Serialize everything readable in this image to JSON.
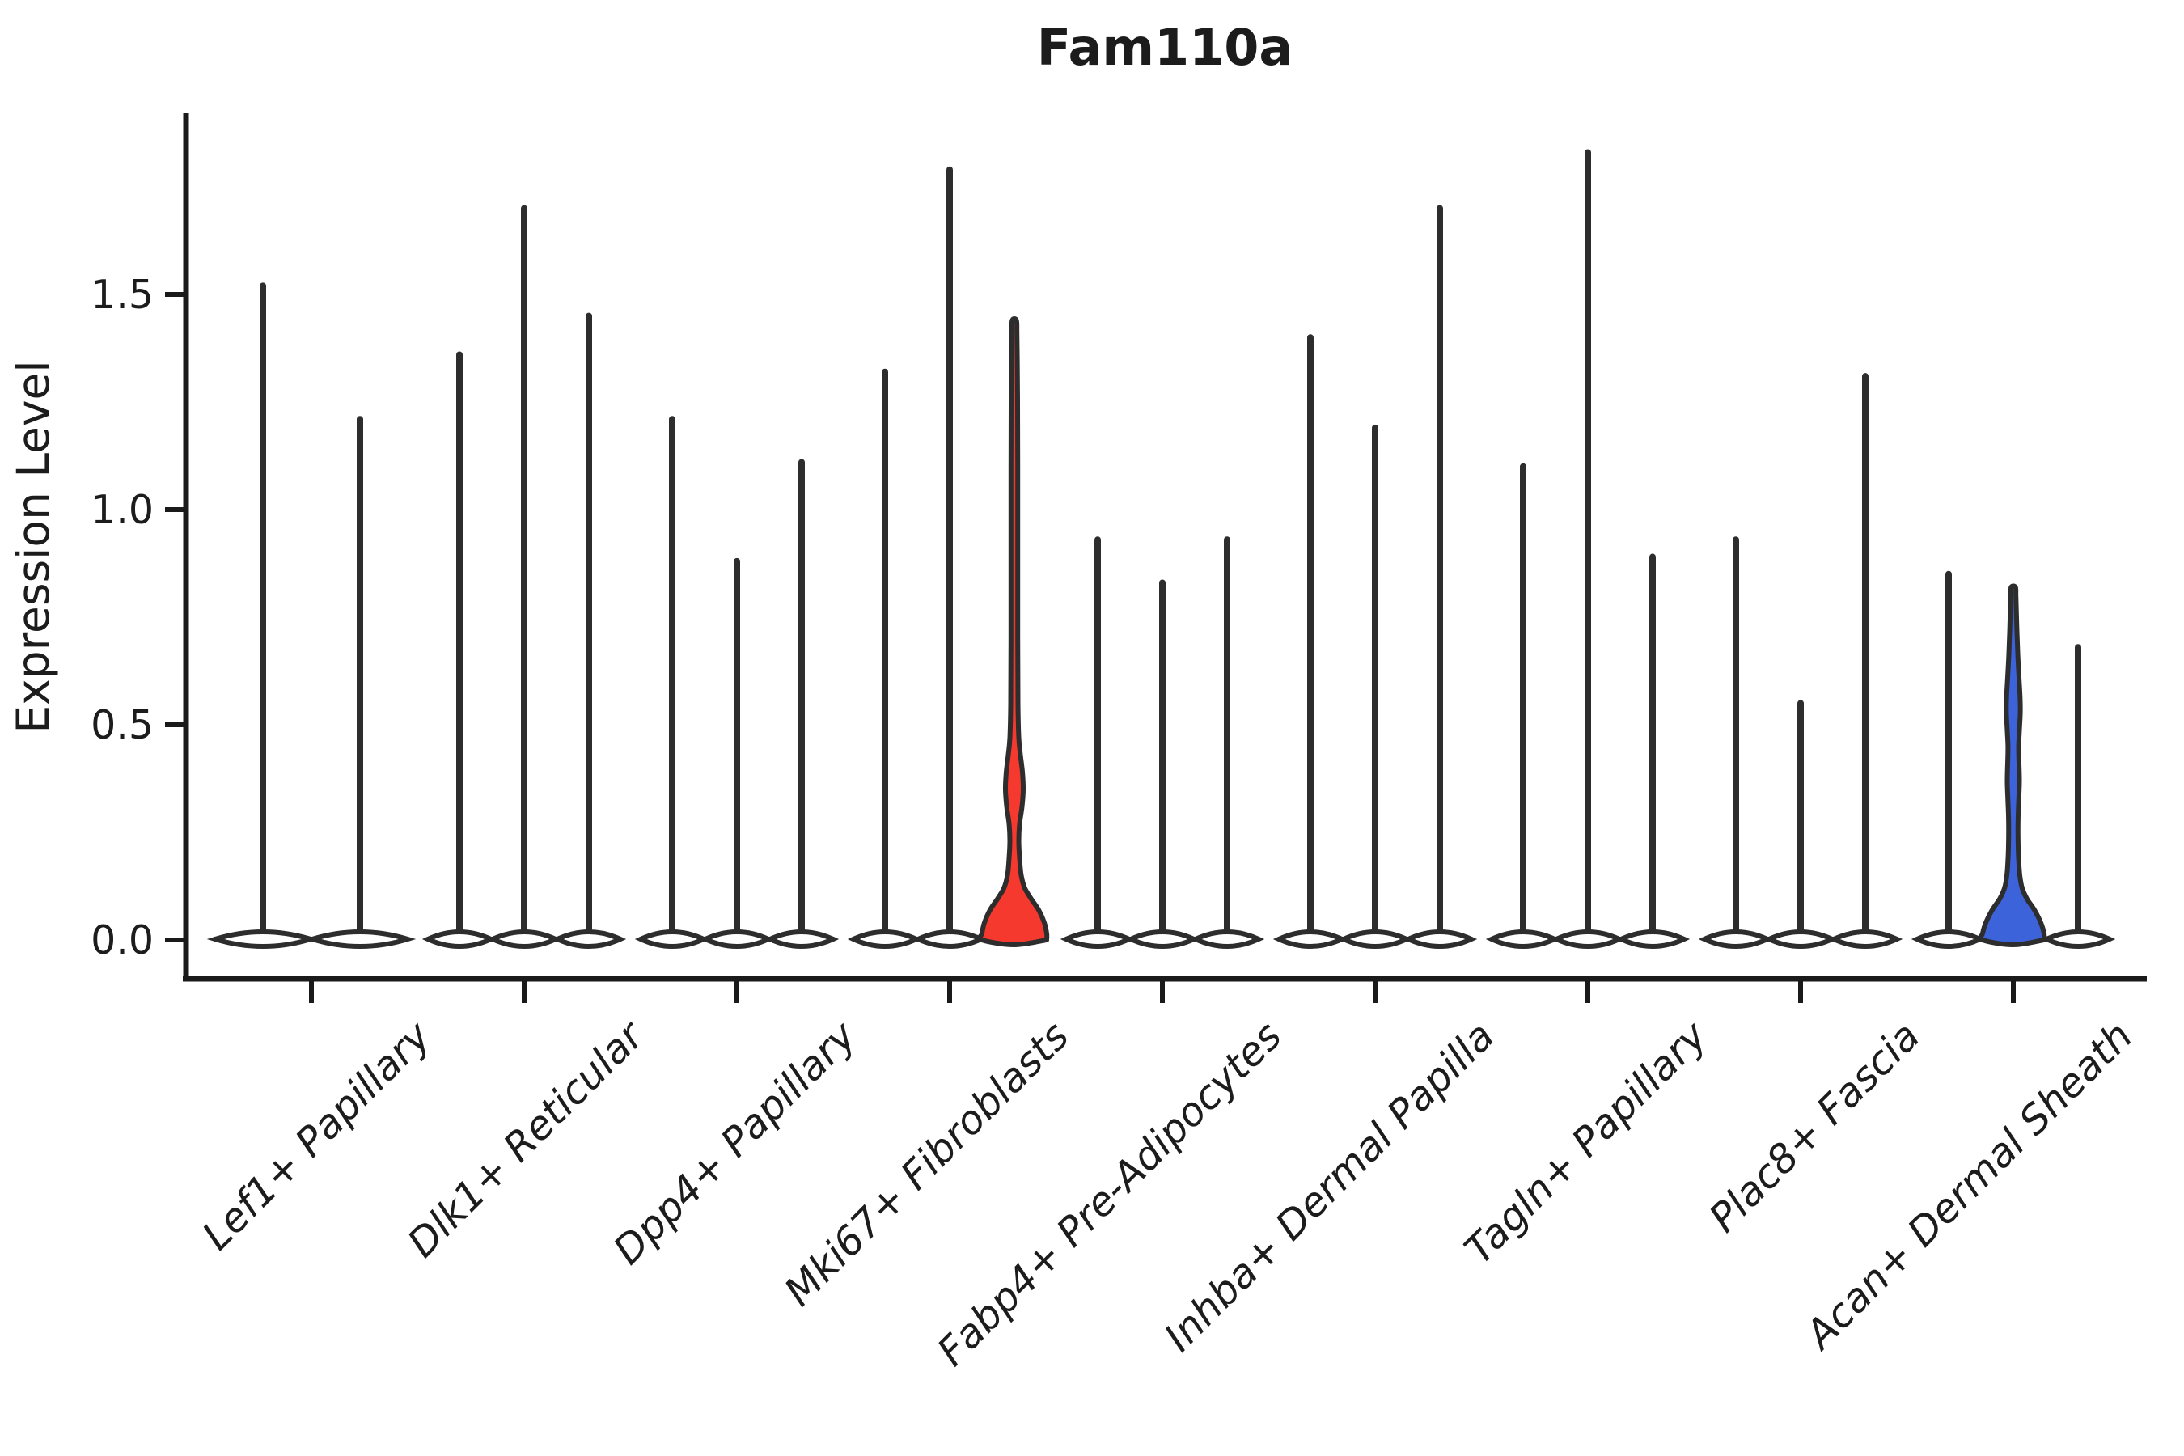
{
  "title": "Fam110a",
  "axes": {
    "ylabel": "Expression Level",
    "ytick_labels": [
      "0.0",
      "0.5",
      "1.0",
      "1.5"
    ]
  },
  "chart_data": {
    "type": "violin",
    "title": "Fam110a",
    "xlabel": "",
    "ylabel": "Expression Level",
    "yticks": [
      0.0,
      0.5,
      1.0,
      1.5
    ],
    "ylim": [
      -0.09,
      1.91
    ],
    "grid": false,
    "legend": "none",
    "categories": [
      "Lef1+ Papillary",
      "Dlk1+ Reticular",
      "Dpp4+ Papillary",
      "Mki67+ Fibroblasts",
      "Fabp4+ Pre-Adipocytes",
      "Inhba+ Dermal Papilla",
      "Tagln+ Papillary",
      "Plac8+ Fascia",
      "Acan+ Dermal Sheath"
    ],
    "colors": {
      "outline": "#2d2d2d",
      "axis": "#1a1a1a",
      "highlight_red": "#f6392f",
      "highlight_blue": "#3d63da",
      "plain_fill": "#ffffff"
    },
    "groups": [
      {
        "category": "Lef1+ Papillary",
        "violins": [
          {
            "max": 1.52
          },
          {
            "max": 1.21
          }
        ]
      },
      {
        "category": "Dlk1+ Reticular",
        "violins": [
          {
            "max": 1.36
          },
          {
            "max": 1.7
          },
          {
            "max": 1.45
          }
        ]
      },
      {
        "category": "Dpp4+ Papillary",
        "violins": [
          {
            "max": 1.21
          },
          {
            "max": 0.88
          },
          {
            "max": 1.11
          }
        ]
      },
      {
        "category": "Mki67+ Fibroblasts",
        "violins": [
          {
            "max": 1.32
          },
          {
            "max": 1.79
          },
          {
            "max": 1.44,
            "fill": "highlight_red",
            "profile": [
              [
                0,
                40
              ],
              [
                0.015,
                40
              ],
              [
                0.04,
                37
              ],
              [
                0.07,
                30
              ],
              [
                0.095,
                21
              ],
              [
                0.12,
                13
              ],
              [
                0.15,
                8.5
              ],
              [
                0.19,
                6.5
              ],
              [
                0.23,
                5.5
              ],
              [
                0.27,
                6.5
              ],
              [
                0.31,
                9.5
              ],
              [
                0.35,
                11
              ],
              [
                0.39,
                10
              ],
              [
                0.43,
                7.5
              ],
              [
                0.47,
                5.5
              ],
              [
                0.55,
                4.5
              ],
              [
                0.7,
                4.2
              ],
              [
                0.9,
                4.2
              ],
              [
                1.1,
                4.2
              ],
              [
                1.25,
                4
              ],
              [
                1.35,
                3.6
              ],
              [
                1.41,
                3.2
              ],
              [
                1.44,
                2.6
              ]
            ]
          }
        ]
      },
      {
        "category": "Fabp4+ Pre-Adipocytes",
        "violins": [
          {
            "max": 0.93
          },
          {
            "max": 0.83
          },
          {
            "max": 0.93
          }
        ]
      },
      {
        "category": "Inhba+ Dermal Papilla",
        "violins": [
          {
            "max": 1.4
          },
          {
            "max": 1.19
          },
          {
            "max": 1.7
          }
        ]
      },
      {
        "category": "Tagln+ Papillary",
        "violins": [
          {
            "max": 1.1
          },
          {
            "max": 1.83
          },
          {
            "max": 0.89
          }
        ]
      },
      {
        "category": "Plac8+ Fascia",
        "violins": [
          {
            "max": 0.93
          },
          {
            "max": 0.55
          },
          {
            "max": 1.31
          }
        ]
      },
      {
        "category": "Acan+ Dermal Sheath",
        "violins": [
          {
            "max": 0.85
          },
          {
            "max": 0.82,
            "fill": "highlight_blue",
            "profile": [
              [
                0,
                38
              ],
              [
                0.015,
                38
              ],
              [
                0.04,
                34
              ],
              [
                0.07,
                26
              ],
              [
                0.095,
                17
              ],
              [
                0.12,
                11
              ],
              [
                0.15,
                8
              ],
              [
                0.19,
                6.5
              ],
              [
                0.24,
                5.8
              ],
              [
                0.29,
                6
              ],
              [
                0.33,
                6.8
              ],
              [
                0.37,
                7.5
              ],
              [
                0.41,
                7
              ],
              [
                0.45,
                6.6
              ],
              [
                0.49,
                7.6
              ],
              [
                0.53,
                8.6
              ],
              [
                0.57,
                8.2
              ],
              [
                0.61,
                7
              ],
              [
                0.66,
                5.6
              ],
              [
                0.71,
                4.6
              ],
              [
                0.76,
                3.8
              ],
              [
                0.8,
                3.2
              ],
              [
                0.82,
                2.6
              ]
            ]
          },
          {
            "max": 0.68
          }
        ]
      }
    ]
  }
}
